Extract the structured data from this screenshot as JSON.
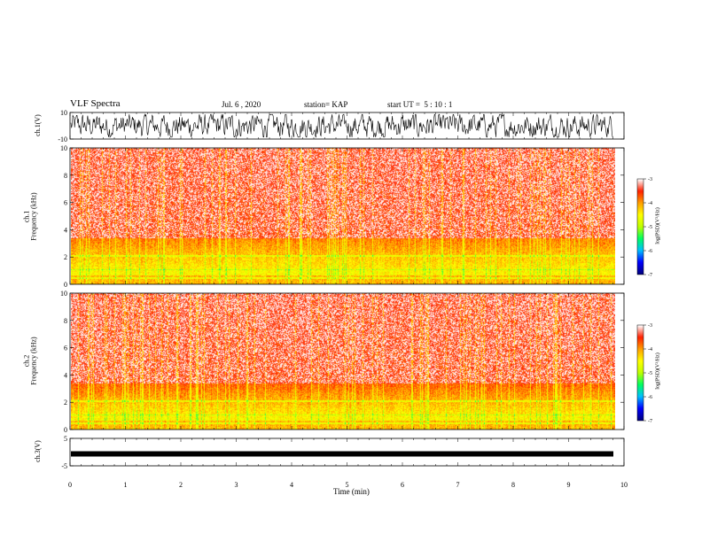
{
  "header": {
    "title": "VLF Spectra",
    "date": "Jul. 6 , 2020",
    "station": "station= KAP",
    "start": "start UT =  5 : 10 : 1"
  },
  "colors": {
    "spectrogram_scale": [
      "#000080",
      "#0000ff",
      "#00c0ff",
      "#00ff60",
      "#c0ff00",
      "#ffff00",
      "#ffa000",
      "#ff2000",
      "#ffffff"
    ],
    "trace": "#000000"
  },
  "chart_data": [
    {
      "type": "line",
      "panel": "ch1-waveform",
      "ylabel": "ch.1(V)",
      "ylim": [
        -10,
        10
      ],
      "yticks": [
        "10",
        "-10"
      ],
      "xlim": [
        0,
        10
      ],
      "series": [
        {
          "values_description_omitted": true
        }
      ]
    },
    {
      "type": "heatmap",
      "panel": "ch1-spectrogram",
      "ylabel": "ch.1\nFrequency (kHz)",
      "ylabel_line1": "ch.1",
      "ylabel_line2": "Frequency (kHz)",
      "ylim": [
        0,
        10
      ],
      "yticks": [
        "0",
        "2",
        "4",
        "6",
        "8",
        "10"
      ],
      "xlim": [
        0,
        9.8
      ],
      "colorbar": {
        "label": "log(PSD)(V²/Hz)",
        "range": [
          -7,
          -3
        ],
        "ticks": [
          "-3",
          "-4",
          "-5",
          "-6",
          "-7"
        ]
      }
    },
    {
      "type": "heatmap",
      "panel": "ch2-spectrogram",
      "ylabel_line1": "ch.2",
      "ylabel_line2": "Frequency (kHz)",
      "ylim": [
        0,
        10
      ],
      "yticks": [
        "0",
        "2",
        "4",
        "6",
        "8",
        "10"
      ],
      "xlim": [
        0,
        9.8
      ],
      "colorbar": {
        "label": "log(PSD)(V²/Hz)",
        "range": [
          -7,
          -3
        ],
        "ticks": [
          "-3",
          "-4",
          "-5",
          "-6",
          "-7"
        ]
      }
    },
    {
      "type": "line",
      "panel": "ch3-waveform",
      "ylabel": "ch.3(V)",
      "ylim": [
        -5,
        5
      ],
      "yticks": [
        "5",
        "-5"
      ],
      "xlim": [
        0,
        10
      ],
      "xlabel": "Time (min)",
      "xticks": [
        "0",
        "1",
        "2",
        "3",
        "4",
        "5",
        "6",
        "7",
        "8",
        "9",
        "10"
      ]
    }
  ]
}
